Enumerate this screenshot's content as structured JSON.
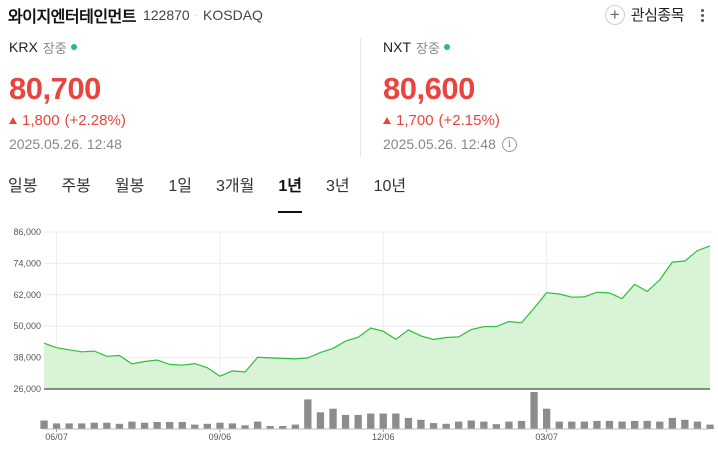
{
  "header": {
    "company": "와이지엔터테인먼트",
    "code": "122870",
    "separator": "·",
    "market": "KOSDAQ",
    "watch_label": "관심종목",
    "watch_icon": "plus-icon",
    "more_icon": "more-vertical-icon"
  },
  "krx": {
    "exchange": "KRX",
    "status": "장중",
    "price": "80,700",
    "change": "1,800",
    "change_pct": "(+2.28%)",
    "timestamp": "2025.05.26. 12:48"
  },
  "nxt": {
    "exchange": "NXT",
    "status": "장중",
    "price": "80,600",
    "change": "1,700",
    "change_pct": "(+2.15%)",
    "timestamp": "2025.05.26. 12:48",
    "info_icon": "info-icon"
  },
  "colors": {
    "up": "#e9453e",
    "live": "#1ec07c",
    "line": "#2fbe3a",
    "area": "#d9f3d6",
    "volume": "#8c8c8c"
  },
  "tabs": [
    {
      "label": "일봉",
      "active": false
    },
    {
      "label": "주봉",
      "active": false
    },
    {
      "label": "월봉",
      "active": false
    },
    {
      "label": "1일",
      "active": false
    },
    {
      "label": "3개월",
      "active": false
    },
    {
      "label": "1년",
      "active": true
    },
    {
      "label": "3년",
      "active": false
    },
    {
      "label": "10년",
      "active": false
    }
  ],
  "chart_data": {
    "type": "area",
    "period": "1년",
    "y_ticks": [
      "86,000",
      "74,000",
      "62,000",
      "50,000",
      "38,000",
      "26,000"
    ],
    "ylim": [
      26000,
      86000
    ],
    "x_ticks": [
      "06/07",
      "09/06",
      "12/06",
      "03/07"
    ],
    "x_tick_index": [
      1,
      14,
      27,
      40
    ],
    "prices": [
      43500,
      41800,
      41000,
      40200,
      40500,
      38500,
      38800,
      35600,
      36500,
      37100,
      35400,
      35100,
      35700,
      34100,
      30900,
      32900,
      32500,
      38100,
      37900,
      37700,
      37500,
      37900,
      40000,
      41500,
      44300,
      45800,
      49300,
      48100,
      45000,
      48600,
      46300,
      44900,
      45700,
      45900,
      48700,
      49800,
      49900,
      51800,
      51300,
      56900,
      62800,
      62300,
      61100,
      61200,
      63000,
      62700,
      60500,
      66000,
      63300,
      67700,
      74500,
      74900,
      78900,
      80700
    ],
    "volumes": [
      0.23,
      0.15,
      0.15,
      0.15,
      0.17,
      0.17,
      0.14,
      0.2,
      0.17,
      0.19,
      0.19,
      0.19,
      0.12,
      0.14,
      0.17,
      0.15,
      0.1,
      0.2,
      0.08,
      0.08,
      0.12,
      0.8,
      0.45,
      0.55,
      0.38,
      0.38,
      0.42,
      0.42,
      0.42,
      0.3,
      0.25,
      0.16,
      0.14,
      0.2,
      0.23,
      0.2,
      0.13,
      0.2,
      0.22,
      1.0,
      0.55,
      0.2,
      0.2,
      0.2,
      0.22,
      0.22,
      0.2,
      0.22,
      0.22,
      0.2,
      0.3,
      0.25,
      0.2,
      0.12
    ]
  }
}
